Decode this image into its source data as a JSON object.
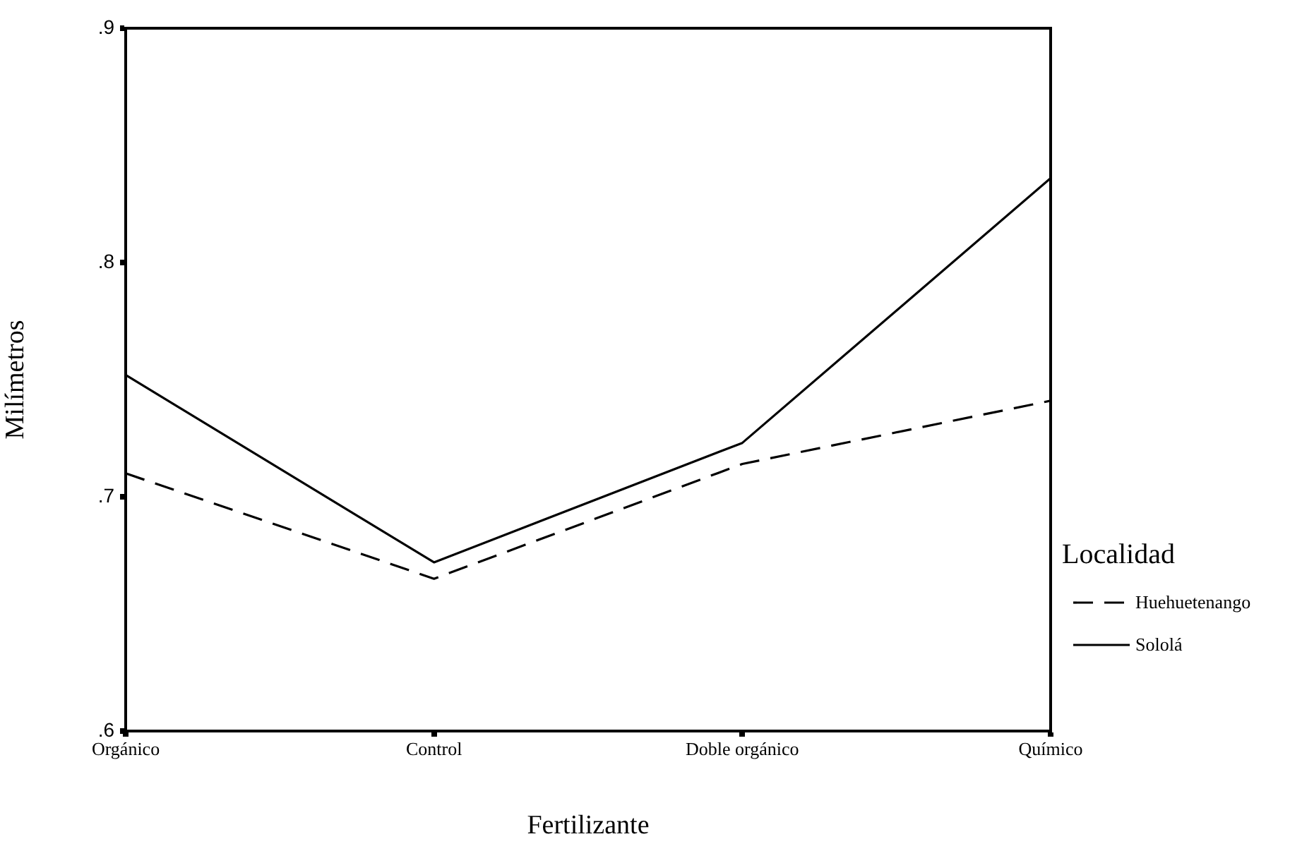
{
  "chart_data": {
    "type": "line",
    "xlabel": "Fertilizante",
    "ylabel": "Milímetros",
    "legend_title": "Localidad",
    "legend": "right",
    "marker": "none",
    "categories": [
      "Orgánico",
      "Control",
      "Doble orgánico",
      "Químico"
    ],
    "ylim": [
      0.6,
      0.9
    ],
    "yticks": [
      {
        "value": 0.6,
        "label": ".6"
      },
      {
        "value": 0.7,
        "label": ".7"
      },
      {
        "value": 0.8,
        "label": ".8"
      },
      {
        "value": 0.9,
        "label": ".9"
      }
    ],
    "series": [
      {
        "name": "Huehuetenango",
        "color": "#000000",
        "line_style": "dashed",
        "values": [
          0.71,
          0.665,
          0.714,
          0.741
        ]
      },
      {
        "name": "Sololá",
        "color": "#000000",
        "line_style": "solid",
        "values": [
          0.752,
          0.672,
          0.723,
          0.836
        ]
      }
    ]
  }
}
